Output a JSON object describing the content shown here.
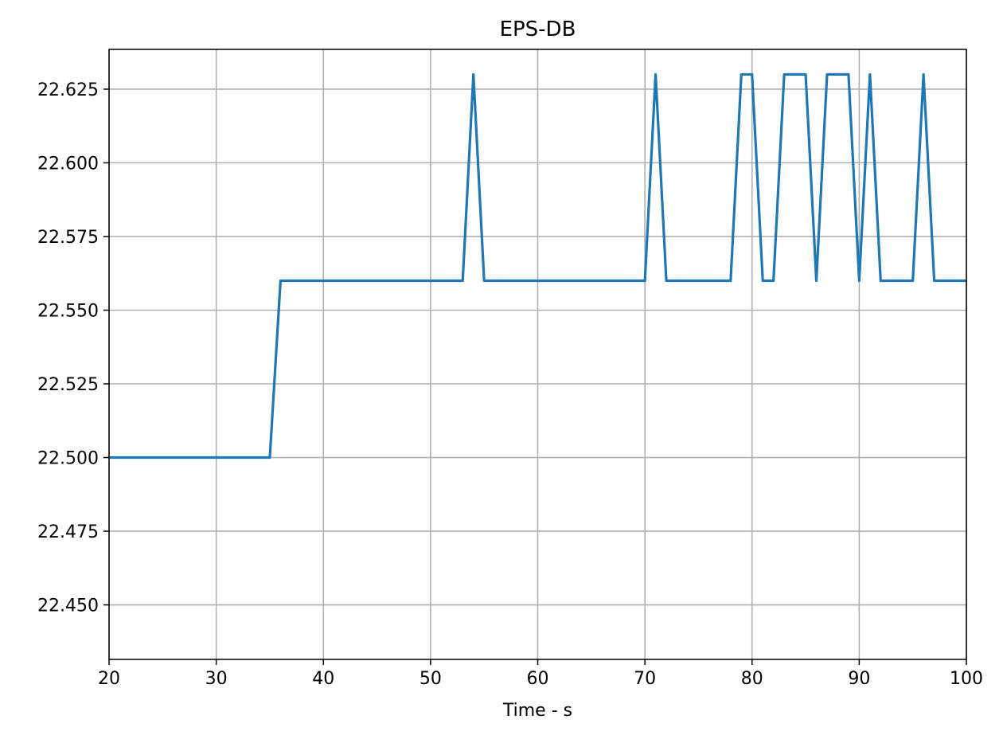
{
  "chart_data": {
    "type": "line",
    "title": "EPS-DB",
    "xlabel": "Time - s",
    "ylabel": "",
    "xlim": [
      20,
      100
    ],
    "ylim": [
      22.4315,
      22.6385
    ],
    "x_ticks": [
      20,
      30,
      40,
      50,
      60,
      70,
      80,
      90,
      100
    ],
    "x_tick_labels": [
      "20",
      "30",
      "40",
      "50",
      "60",
      "70",
      "80",
      "90",
      "100"
    ],
    "y_ticks": [
      22.45,
      22.475,
      22.5,
      22.525,
      22.55,
      22.575,
      22.6,
      22.625
    ],
    "y_tick_labels": [
      "22.450",
      "22.475",
      "22.500",
      "22.525",
      "22.550",
      "22.575",
      "22.600",
      "22.625"
    ],
    "grid": true,
    "colors": {
      "line": "#1f77b4",
      "grid": "#b0b0b0",
      "axes": "#000000"
    },
    "series": [
      {
        "x": [
          20,
          35,
          36,
          53,
          54,
          55,
          70,
          71,
          72,
          78,
          79,
          80,
          81,
          82,
          83,
          85,
          86,
          87,
          89,
          90,
          91,
          92,
          95,
          96,
          97,
          100
        ],
        "y": [
          22.5,
          22.5,
          22.56,
          22.56,
          22.63,
          22.56,
          22.56,
          22.63,
          22.56,
          22.56,
          22.63,
          22.63,
          22.56,
          22.56,
          22.63,
          22.63,
          22.56,
          22.63,
          22.63,
          22.56,
          22.63,
          22.56,
          22.56,
          22.63,
          22.56,
          22.56
        ]
      }
    ]
  }
}
